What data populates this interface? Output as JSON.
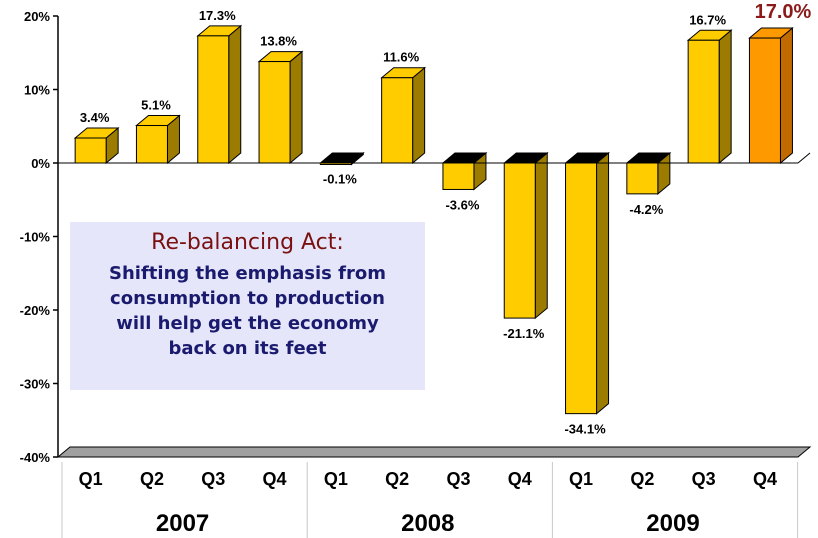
{
  "chart_data": {
    "type": "bar",
    "quarters": [
      "Q1",
      "Q2",
      "Q3",
      "Q4",
      "Q1",
      "Q2",
      "Q3",
      "Q4",
      "Q1",
      "Q2",
      "Q3",
      "Q4"
    ],
    "years": [
      "2007",
      "2008",
      "2009"
    ],
    "values": [
      3.4,
      5.1,
      17.3,
      13.8,
      -0.1,
      11.6,
      -3.6,
      -21.1,
      -34.1,
      -4.2,
      16.7,
      17.0
    ],
    "value_labels": [
      "3.4%",
      "5.1%",
      "17.3%",
      "13.8%",
      "-0.1%",
      "11.6%",
      "-3.6%",
      "-21.1%",
      "-34.1%",
      "-4.2%",
      "16.7%",
      "17.0%"
    ],
    "highlight_index": 11,
    "yticks": [
      "20%",
      "10%",
      "0%",
      "-10%",
      "-20%",
      "-30%",
      "-40%"
    ],
    "ylim": [
      -40,
      20
    ],
    "grid": false,
    "colors": {
      "bar": "#ffcc00",
      "bar_highlight": "#ff9900",
      "highlight_label": "#8b1a1a",
      "floor": "#a0a0a0"
    }
  },
  "callout": {
    "heading": "Re-balancing Act:",
    "lines": [
      "Shifting the emphasis from",
      "consumption to production",
      "will help get the economy",
      "back on its feet"
    ]
  }
}
